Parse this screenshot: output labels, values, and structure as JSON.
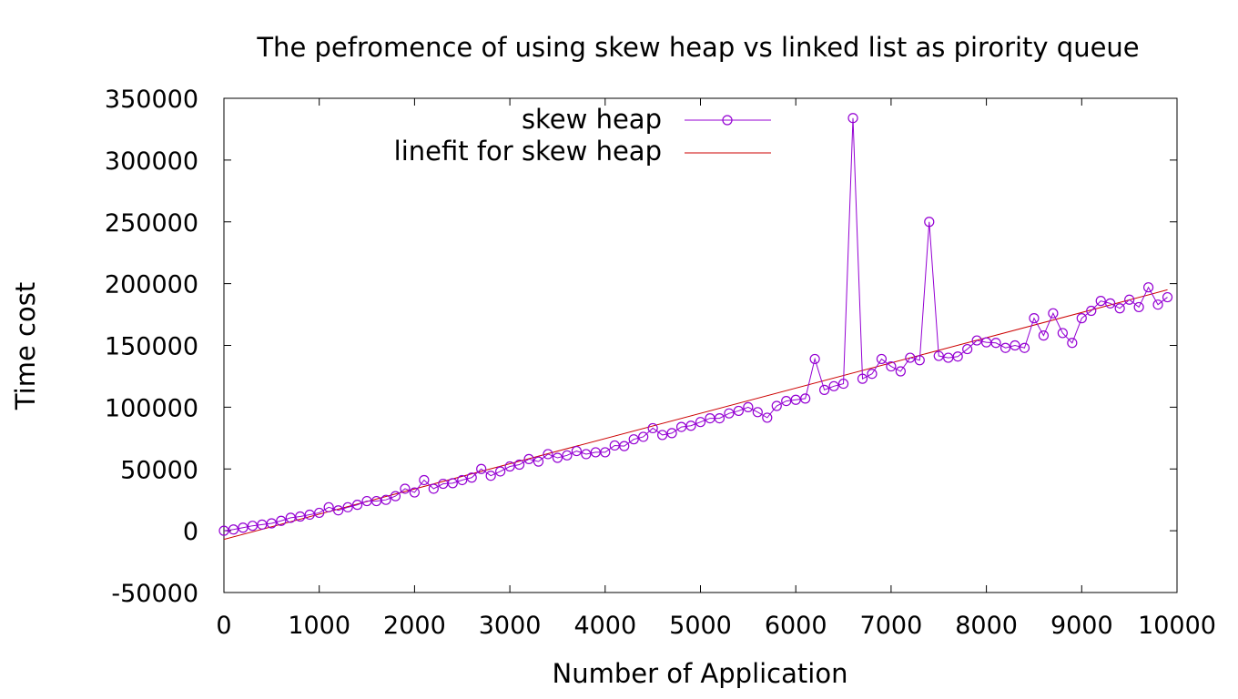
{
  "chart_data": {
    "type": "line",
    "title": "The pefromence of using skew heap vs linked list as pirority queue",
    "xlabel": "Number of Application",
    "ylabel": "Time cost",
    "xlim": [
      0,
      10000
    ],
    "ylim": [
      -50000,
      350000
    ],
    "x_ticks": [
      0,
      1000,
      2000,
      3000,
      4000,
      5000,
      6000,
      7000,
      8000,
      9000,
      10000
    ],
    "y_ticks": [
      -50000,
      0,
      50000,
      100000,
      150000,
      200000,
      250000,
      300000,
      350000
    ],
    "grid": false,
    "legend_position": "top-center",
    "series": [
      {
        "name": "skew heap",
        "color": "#9400d3",
        "marker": "circle",
        "x": [
          0,
          100,
          200,
          300,
          400,
          500,
          600,
          700,
          800,
          900,
          1000,
          1100,
          1200,
          1300,
          1400,
          1500,
          1600,
          1700,
          1800,
          1900,
          2000,
          2100,
          2200,
          2300,
          2400,
          2500,
          2600,
          2700,
          2800,
          2900,
          3000,
          3100,
          3200,
          3300,
          3400,
          3500,
          3600,
          3700,
          3800,
          3900,
          4000,
          4100,
          4200,
          4300,
          4400,
          4500,
          4600,
          4700,
          4800,
          4900,
          5000,
          5100,
          5200,
          5300,
          5400,
          5500,
          5600,
          5700,
          5800,
          5900,
          6000,
          6100,
          6200,
          6300,
          6400,
          6500,
          6600,
          6700,
          6800,
          6900,
          7000,
          7100,
          7200,
          7300,
          7400,
          7500,
          7600,
          7700,
          7800,
          7900,
          8000,
          8100,
          8200,
          8300,
          8400,
          8500,
          8600,
          8700,
          8800,
          8900,
          9000,
          9100,
          9200,
          9300,
          9400,
          9500,
          9600,
          9700,
          9800,
          9900
        ],
        "y": [
          0,
          1000,
          2500,
          4000,
          5000,
          6000,
          8000,
          10500,
          11500,
          13000,
          14500,
          19000,
          16500,
          19000,
          21000,
          24000,
          24000,
          25000,
          28000,
          34000,
          31000,
          41000,
          34000,
          38000,
          38500,
          41000,
          43000,
          50000,
          44500,
          48000,
          52000,
          53500,
          58000,
          56000,
          62000,
          59000,
          61000,
          64500,
          62000,
          63500,
          63500,
          69000,
          68500,
          74000,
          76000,
          83000,
          77500,
          79000,
          84000,
          85000,
          88000,
          91000,
          91000,
          95000,
          97000,
          100000,
          96000,
          91500,
          101000,
          105000,
          106000,
          107000,
          139000,
          114000,
          117000,
          119000,
          334000,
          123000,
          127000,
          139000,
          133000,
          129000,
          140000,
          138000,
          250000,
          141500,
          140000,
          141000,
          147000,
          154000,
          152500,
          152000,
          148000,
          150000,
          148000,
          172000,
          158000,
          176000,
          160000,
          152000,
          172000,
          178000,
          186000,
          184000,
          180000,
          187000,
          181000,
          197000,
          183000,
          189000
        ]
      },
      {
        "name": "linefit for skew heap",
        "color": "#cc0000",
        "marker": "none",
        "x": [
          0,
          9900
        ],
        "y": [
          -7000,
          195000
        ]
      }
    ]
  }
}
